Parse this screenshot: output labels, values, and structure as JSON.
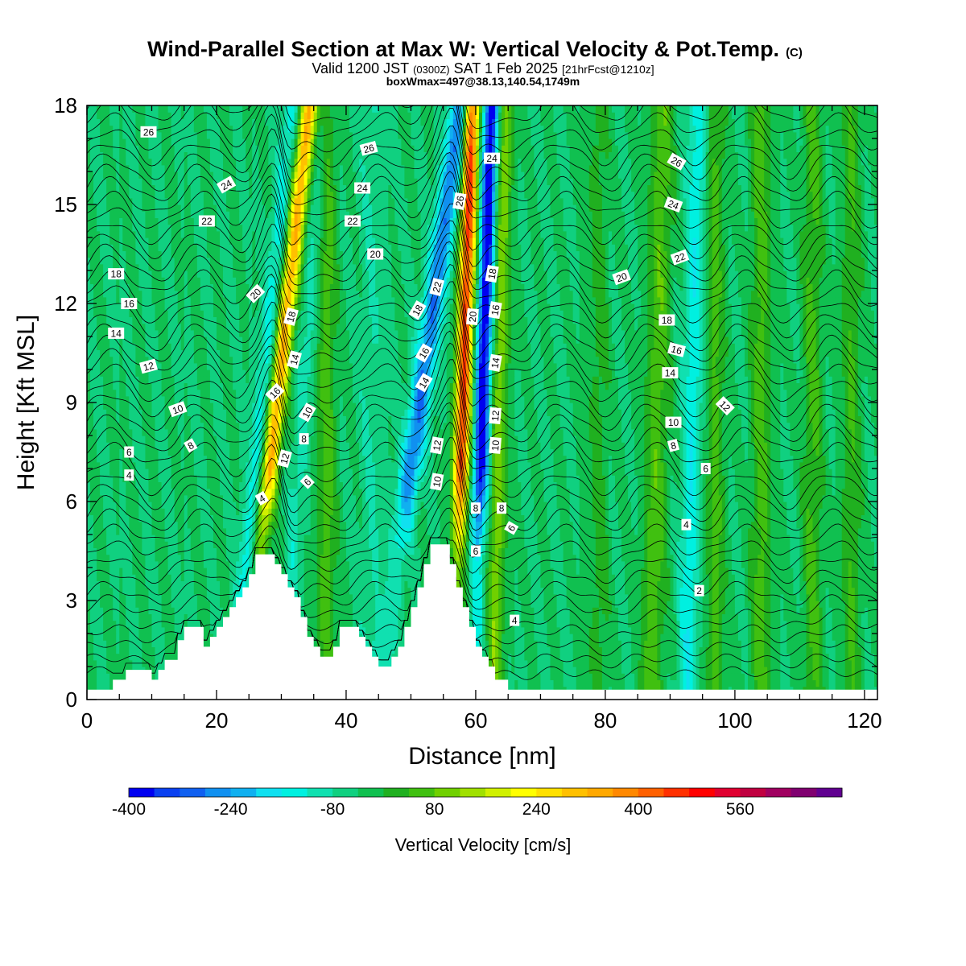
{
  "header": {
    "title": "Wind-Parallel Section at Max W: Vertical Velocity & Pot.Temp.",
    "title_unit": "(C)",
    "valid_a": "Valid 1200 JST",
    "valid_b": "(0300Z)",
    "valid_c": "SAT 1 Feb 2025",
    "valid_d": "[21hrFcst@1210z]",
    "boxline": "boxWmax=497@38.13,140.54,1749m"
  },
  "chart_data": {
    "type": "heatmap",
    "xlabel": "Distance [nm]",
    "ylabel": "Height [Kft MSL]",
    "xlim": [
      0,
      122
    ],
    "ylim": [
      0,
      18
    ],
    "x_ticks": [
      0,
      20,
      40,
      60,
      80,
      100,
      120
    ],
    "y_ticks": [
      0,
      3,
      6,
      9,
      12,
      15,
      18
    ],
    "colorbar": {
      "title": "Vertical Velocity [cm/s]",
      "tick_labels": [
        -400,
        -240,
        -80,
        80,
        240,
        400,
        560
      ],
      "levels_start": -400,
      "level_step": 40,
      "colors": [
        "#0000f0",
        "#0a40f0",
        "#1060f0",
        "#1090f0",
        "#10b0f0",
        "#10e0f0",
        "#00f0e0",
        "#10e0b0",
        "#10d080",
        "#10c050",
        "#20b020",
        "#40c010",
        "#70d000",
        "#a0e000",
        "#d0f000",
        "#ffff00",
        "#ffe000",
        "#ffc000",
        "#ffa800",
        "#ff8800",
        "#ff6000",
        "#ff3000",
        "#ff0000",
        "#e00030",
        "#c00040",
        "#a00060",
        "#800070",
        "#600090"
      ]
    },
    "terrain_kft": [
      [
        0,
        0.3
      ],
      [
        4,
        0.3
      ],
      [
        4,
        0.6
      ],
      [
        6,
        0.6
      ],
      [
        6,
        0.9
      ],
      [
        10,
        0.9
      ],
      [
        10,
        0.6
      ],
      [
        11,
        0.6
      ],
      [
        11,
        0.9
      ],
      [
        12,
        0.9
      ],
      [
        12,
        1.2
      ],
      [
        14,
        1.2
      ],
      [
        14,
        1.8
      ],
      [
        15,
        1.8
      ],
      [
        15,
        2.2
      ],
      [
        18,
        2.2
      ],
      [
        18,
        1.6
      ],
      [
        19,
        1.6
      ],
      [
        19,
        1.9
      ],
      [
        20,
        1.9
      ],
      [
        20,
        2.2
      ],
      [
        21,
        2.2
      ],
      [
        21,
        2.5
      ],
      [
        22,
        2.5
      ],
      [
        22,
        2.8
      ],
      [
        23,
        2.8
      ],
      [
        23,
        3.1
      ],
      [
        24,
        3.1
      ],
      [
        24,
        3.4
      ],
      [
        25,
        3.4
      ],
      [
        25,
        3.8
      ],
      [
        26,
        3.8
      ],
      [
        26,
        4.4
      ],
      [
        29,
        4.4
      ],
      [
        29,
        4.1
      ],
      [
        30,
        4.1
      ],
      [
        30,
        3.8
      ],
      [
        31,
        3.8
      ],
      [
        31,
        3.4
      ],
      [
        32,
        3.4
      ],
      [
        32,
        3.1
      ],
      [
        33,
        3.1
      ],
      [
        33,
        2.5
      ],
      [
        34,
        2.5
      ],
      [
        34,
        1.9
      ],
      [
        35,
        1.9
      ],
      [
        35,
        1.6
      ],
      [
        36,
        1.6
      ],
      [
        36,
        1.3
      ],
      [
        38,
        1.3
      ],
      [
        38,
        1.6
      ],
      [
        39,
        1.6
      ],
      [
        39,
        2.2
      ],
      [
        42,
        2.2
      ],
      [
        42,
        1.9
      ],
      [
        43,
        1.9
      ],
      [
        43,
        1.6
      ],
      [
        44,
        1.6
      ],
      [
        44,
        1.3
      ],
      [
        45,
        1.3
      ],
      [
        45,
        1.0
      ],
      [
        47,
        1.0
      ],
      [
        47,
        1.3
      ],
      [
        48,
        1.3
      ],
      [
        48,
        1.6
      ],
      [
        49,
        1.6
      ],
      [
        49,
        2.2
      ],
      [
        50,
        2.2
      ],
      [
        50,
        2.8
      ],
      [
        51,
        2.8
      ],
      [
        51,
        3.4
      ],
      [
        52,
        3.4
      ],
      [
        52,
        4.1
      ],
      [
        53,
        4.1
      ],
      [
        53,
        4.7
      ],
      [
        56,
        4.7
      ],
      [
        56,
        4.1
      ],
      [
        57,
        4.1
      ],
      [
        57,
        3.4
      ],
      [
        58,
        3.4
      ],
      [
        58,
        2.8
      ],
      [
        59,
        2.8
      ],
      [
        59,
        2.2
      ],
      [
        60,
        2.2
      ],
      [
        60,
        1.6
      ],
      [
        61,
        1.6
      ],
      [
        61,
        1.3
      ],
      [
        62,
        1.3
      ],
      [
        62,
        1.0
      ],
      [
        63,
        1.0
      ],
      [
        63,
        0.6
      ],
      [
        65,
        0.6
      ],
      [
        65,
        0.3
      ],
      [
        122,
        0.3
      ]
    ],
    "w_features_cm_s": [
      {
        "center_nm": 31.0,
        "center_height_kft": 12.0,
        "slope_nm_per_kft": 0.55,
        "width_nm": 1.3,
        "amplitude": 360
      },
      {
        "center_nm": 34.5,
        "center_height_kft": 12.0,
        "slope_nm_per_kft": 0.35,
        "width_nm": 1.3,
        "amplitude": -60
      },
      {
        "center_nm": 28.5,
        "center_height_kft": 12.0,
        "slope_nm_per_kft": 0.5,
        "width_nm": 1.3,
        "amplitude": -100
      },
      {
        "center_nm": 53.5,
        "center_height_kft": 12.0,
        "slope_nm_per_kft": 0.7,
        "width_nm": 1.6,
        "amplitude": -240
      },
      {
        "center_nm": 58.5,
        "center_height_kft": 12.0,
        "slope_nm_per_kft": 0.15,
        "width_nm": 1.2,
        "amplitude": 497
      },
      {
        "center_nm": 61.5,
        "center_height_kft": 12.0,
        "slope_nm_per_kft": 0.15,
        "width_nm": 1.1,
        "amplitude": -380
      },
      {
        "center_nm": 64.0,
        "center_height_kft": 12.0,
        "slope_nm_per_kft": 0.1,
        "width_nm": 1.2,
        "amplitude": 150
      },
      {
        "center_nm": 37.0,
        "center_height_kft": 6.0,
        "slope_nm_per_kft": 0.0,
        "width_nm": 1.5,
        "amplitude": 100
      },
      {
        "center_nm": 44.0,
        "center_height_kft": 9.0,
        "slope_nm_per_kft": 0.0,
        "width_nm": 2.0,
        "amplitude": -40
      },
      {
        "center_nm": 88.0,
        "center_height_kft": 9.0,
        "slope_nm_per_kft": 0.1,
        "width_nm": 1.8,
        "amplitude": 110
      },
      {
        "center_nm": 93.5,
        "center_height_kft": 9.0,
        "slope_nm_per_kft": 0.1,
        "width_nm": 1.5,
        "amplitude": -110
      },
      {
        "center_nm": 97.0,
        "center_height_kft": 9.0,
        "slope_nm_per_kft": 0.0,
        "width_nm": 1.5,
        "amplitude": 90
      },
      {
        "center_nm": 104.0,
        "center_height_kft": 9.0,
        "slope_nm_per_kft": 0.0,
        "width_nm": 1.5,
        "amplitude": 100
      },
      {
        "center_nm": 112.0,
        "center_height_kft": 9.0,
        "slope_nm_per_kft": 0.0,
        "width_nm": 1.5,
        "amplitude": 90
      },
      {
        "center_nm": 118.0,
        "center_height_kft": 9.0,
        "slope_nm_per_kft": 0.0,
        "width_nm": 1.5,
        "amplitude": 80
      },
      {
        "center_nm": 79.0,
        "center_height_kft": 9.0,
        "slope_nm_per_kft": 0.0,
        "width_nm": 1.5,
        "amplitude": 60
      }
    ],
    "theta_contours_C": [
      2,
      4,
      6,
      8,
      10,
      12,
      14,
      16,
      18,
      20,
      22,
      24,
      26
    ],
    "theta_contour_labels": [
      {
        "text": "26",
        "x": 9.5,
        "y": 17.2,
        "angle": 0
      },
      {
        "text": "24",
        "x": 21.5,
        "y": 15.6,
        "angle": -30
      },
      {
        "text": "22",
        "x": 18.5,
        "y": 14.5,
        "angle": 0
      },
      {
        "text": "18",
        "x": 4.5,
        "y": 12.9,
        "angle": 0
      },
      {
        "text": "16",
        "x": 6.5,
        "y": 12.0,
        "angle": 0
      },
      {
        "text": "14",
        "x": 4.5,
        "y": 11.1,
        "angle": 0
      },
      {
        "text": "12",
        "x": 9.5,
        "y": 10.1,
        "angle": -15
      },
      {
        "text": "10",
        "x": 14.0,
        "y": 8.8,
        "angle": -20
      },
      {
        "text": "8",
        "x": 16.0,
        "y": 7.7,
        "angle": -30
      },
      {
        "text": "6",
        "x": 6.5,
        "y": 7.5,
        "angle": 0
      },
      {
        "text": "4",
        "x": 6.5,
        "y": 6.8,
        "angle": 0
      },
      {
        "text": "20",
        "x": 26.0,
        "y": 12.3,
        "angle": -45
      },
      {
        "text": "18",
        "x": 31.5,
        "y": 11.6,
        "angle": -75
      },
      {
        "text": "16",
        "x": 29.0,
        "y": 9.3,
        "angle": -45
      },
      {
        "text": "14",
        "x": 32.0,
        "y": 10.3,
        "angle": -75
      },
      {
        "text": "12",
        "x": 30.5,
        "y": 7.3,
        "angle": -75
      },
      {
        "text": "10",
        "x": 34.0,
        "y": 8.7,
        "angle": -60
      },
      {
        "text": "8",
        "x": 33.5,
        "y": 7.9,
        "angle": 0
      },
      {
        "text": "6",
        "x": 34.0,
        "y": 6.6,
        "angle": -45
      },
      {
        "text": "4",
        "x": 27.0,
        "y": 6.1,
        "angle": -30
      },
      {
        "text": "26",
        "x": 43.5,
        "y": 16.7,
        "angle": -15
      },
      {
        "text": "24",
        "x": 42.5,
        "y": 15.5,
        "angle": 0
      },
      {
        "text": "22",
        "x": 41.0,
        "y": 14.5,
        "angle": 0
      },
      {
        "text": "20",
        "x": 44.5,
        "y": 13.5,
        "angle": 0
      },
      {
        "text": "18",
        "x": 51.0,
        "y": 11.8,
        "angle": -60
      },
      {
        "text": "16",
        "x": 52.0,
        "y": 10.5,
        "angle": -60
      },
      {
        "text": "14",
        "x": 52.0,
        "y": 9.6,
        "angle": -60
      },
      {
        "text": "22",
        "x": 54.0,
        "y": 12.5,
        "angle": -75
      },
      {
        "text": "12",
        "x": 54.0,
        "y": 7.7,
        "angle": -80
      },
      {
        "text": "10",
        "x": 54.0,
        "y": 6.6,
        "angle": -80
      },
      {
        "text": "26",
        "x": 57.5,
        "y": 15.1,
        "angle": -80
      },
      {
        "text": "24",
        "x": 62.5,
        "y": 16.4,
        "angle": 0
      },
      {
        "text": "20",
        "x": 59.5,
        "y": 11.6,
        "angle": -85
      },
      {
        "text": "18",
        "x": 62.5,
        "y": 12.9,
        "angle": -80
      },
      {
        "text": "16",
        "x": 63.0,
        "y": 11.8,
        "angle": -80
      },
      {
        "text": "14",
        "x": 63.0,
        "y": 10.2,
        "angle": -80
      },
      {
        "text": "12",
        "x": 63.0,
        "y": 8.6,
        "angle": -85
      },
      {
        "text": "10",
        "x": 63.0,
        "y": 7.7,
        "angle": -85
      },
      {
        "text": "8",
        "x": 60.0,
        "y": 5.8,
        "angle": 0
      },
      {
        "text": "8",
        "x": 64.0,
        "y": 5.8,
        "angle": 0
      },
      {
        "text": "6",
        "x": 60.0,
        "y": 4.5,
        "angle": 0
      },
      {
        "text": "6",
        "x": 65.5,
        "y": 5.2,
        "angle": -60
      },
      {
        "text": "4",
        "x": 66.0,
        "y": 2.4,
        "angle": 0
      },
      {
        "text": "26",
        "x": 91.0,
        "y": 16.3,
        "angle": 30
      },
      {
        "text": "24",
        "x": 90.5,
        "y": 15.0,
        "angle": 20
      },
      {
        "text": "22",
        "x": 91.5,
        "y": 13.4,
        "angle": -20
      },
      {
        "text": "20",
        "x": 82.5,
        "y": 12.8,
        "angle": -20
      },
      {
        "text": "18",
        "x": 89.5,
        "y": 11.5,
        "angle": 0
      },
      {
        "text": "16",
        "x": 91.0,
        "y": 10.6,
        "angle": 15
      },
      {
        "text": "14",
        "x": 90.0,
        "y": 9.9,
        "angle": 0
      },
      {
        "text": "12",
        "x": 98.5,
        "y": 8.9,
        "angle": 45
      },
      {
        "text": "10",
        "x": 90.5,
        "y": 8.4,
        "angle": 0
      },
      {
        "text": "8",
        "x": 90.5,
        "y": 7.7,
        "angle": -15
      },
      {
        "text": "6",
        "x": 95.5,
        "y": 7.0,
        "angle": 0
      },
      {
        "text": "4",
        "x": 92.5,
        "y": 5.3,
        "angle": 0
      },
      {
        "text": "2",
        "x": 94.5,
        "y": 3.3,
        "angle": 0
      }
    ]
  }
}
